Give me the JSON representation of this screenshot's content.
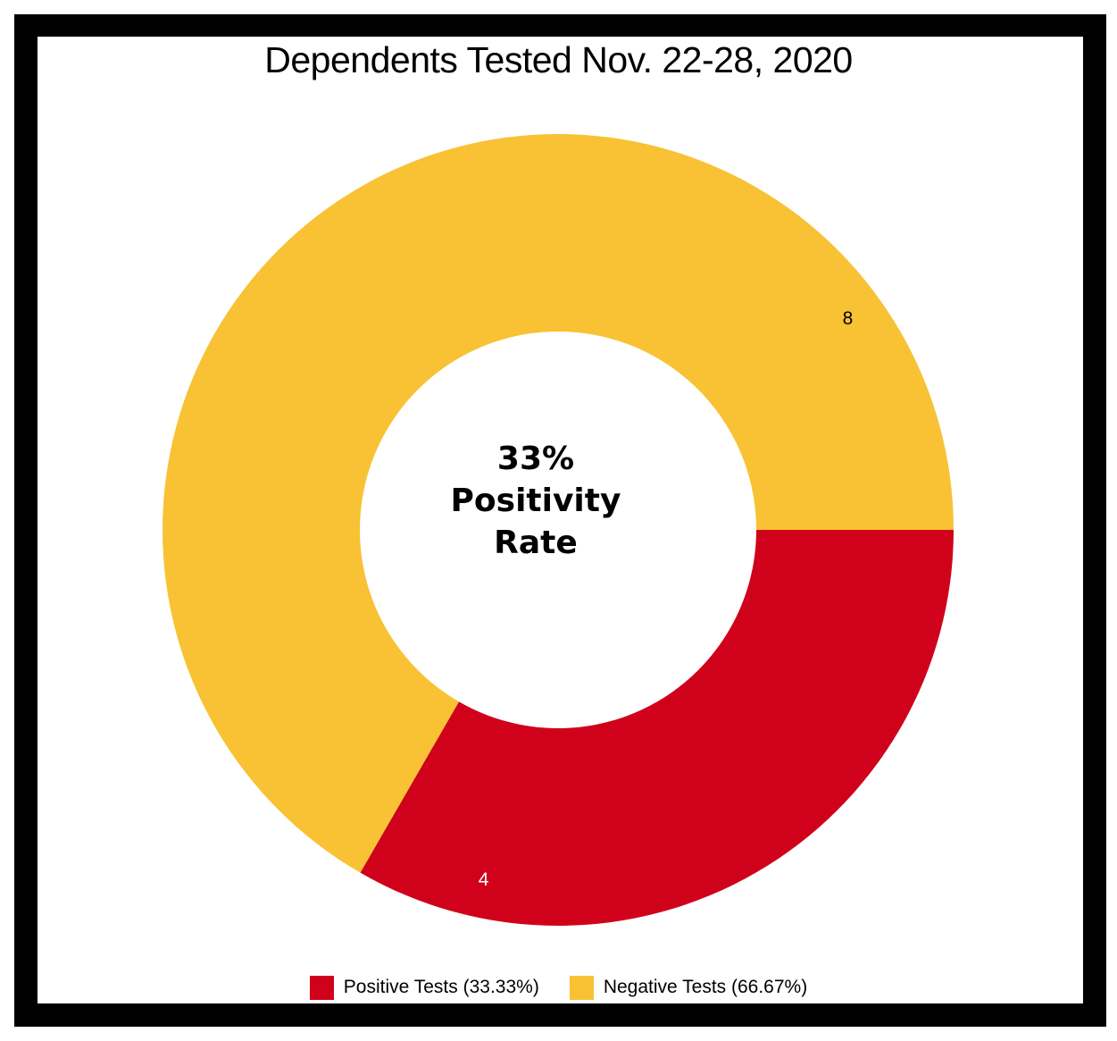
{
  "chart_data": {
    "type": "pie",
    "title": "Dependents Tested Nov. 22-28, 2020",
    "center_label": [
      "33%",
      "Positivity",
      "Rate"
    ],
    "slices": [
      {
        "name": "Positive Tests (33.33%)",
        "value": 4,
        "label": "4",
        "color": "#d0021b",
        "label_color": "#ffffff"
      },
      {
        "name": "Negative Tests (66.67%)",
        "value": 8,
        "label": "8",
        "color": "#f8c234",
        "label_color": "#000000"
      }
    ],
    "legend_position": "bottom"
  }
}
